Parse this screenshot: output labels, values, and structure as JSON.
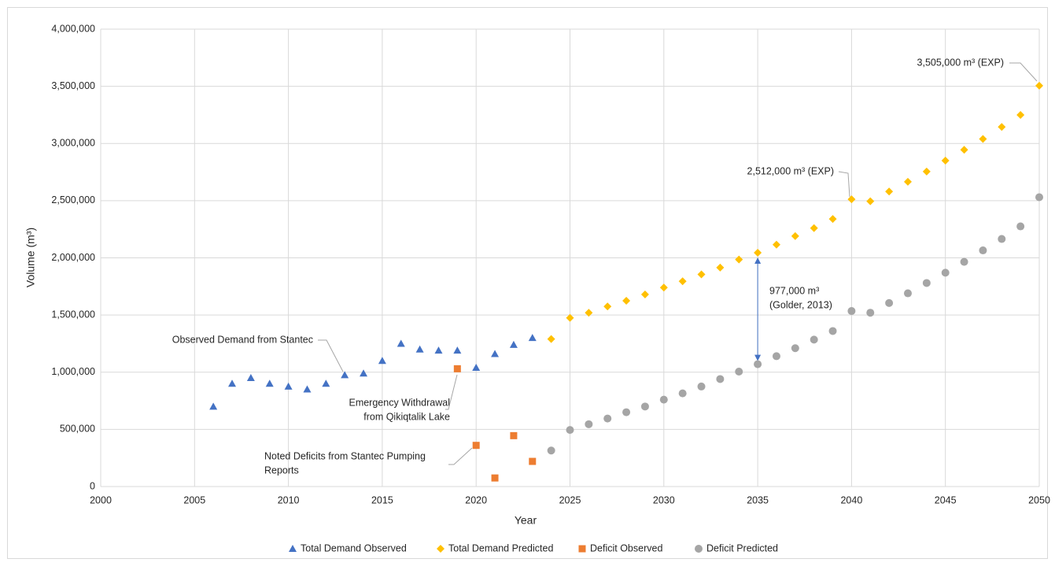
{
  "chart_data": {
    "type": "scatter",
    "xlabel": "Year",
    "ylabel": "Volume (m³)",
    "xlim": [
      2000,
      2050
    ],
    "xticks": [
      2000,
      2005,
      2010,
      2015,
      2020,
      2025,
      2030,
      2035,
      2040,
      2045,
      2050
    ],
    "ylim": [
      0,
      4000000
    ],
    "yticks": [
      0,
      {
        "value": 500000,
        "label": "500,000"
      },
      {
        "value": 1000000,
        "label": "1,000,000"
      },
      {
        "value": 1500000,
        "label": "1,500,000"
      },
      {
        "value": 2000000,
        "label": "2,000,000"
      },
      {
        "value": 2500000,
        "label": "2,500,000"
      },
      {
        "value": 3000000,
        "label": "3,000,000"
      },
      {
        "value": 3500000,
        "label": "3,500,000"
      },
      {
        "value": 4000000,
        "label": "4,000,000"
      }
    ],
    "grid": true,
    "legend": "bottom",
    "series": [
      {
        "name": "Total Demand Observed",
        "color": "#4472c4",
        "marker": "triangle",
        "x": [
          2006,
          2007,
          2008,
          2009,
          2010,
          2011,
          2012,
          2013,
          2014,
          2015,
          2016,
          2017,
          2018,
          2019,
          2020,
          2021,
          2022,
          2023
        ],
        "values": [
          700000,
          900000,
          950000,
          900000,
          875000,
          850000,
          900000,
          975000,
          990000,
          1100000,
          1250000,
          1200000,
          1190000,
          1190000,
          1040000,
          1160000,
          1240000,
          1300000
        ]
      },
      {
        "name": "Total Demand Predicted",
        "color": "#ffc000",
        "marker": "diamond",
        "x": [
          2024,
          2025,
          2026,
          2027,
          2028,
          2029,
          2030,
          2031,
          2032,
          2033,
          2034,
          2035,
          2036,
          2037,
          2038,
          2039,
          2040,
          2041,
          2042,
          2043,
          2044,
          2045,
          2046,
          2047,
          2048,
          2049,
          2050
        ],
        "values": [
          1290000,
          1475000,
          1520000,
          1575000,
          1625000,
          1680000,
          1740000,
          1795000,
          1855000,
          1915000,
          1985000,
          2045000,
          2115000,
          2190000,
          2260000,
          2340000,
          2512000,
          2495000,
          2580000,
          2665000,
          2755000,
          2850000,
          2945000,
          3040000,
          3145000,
          3250000,
          3505000
        ]
      },
      {
        "name": "Deficit Observed",
        "color": "#ed7d31",
        "marker": "square",
        "x": [
          2019,
          2020,
          2021,
          2022,
          2023
        ],
        "values": [
          1030000,
          360000,
          75000,
          445000,
          220000
        ]
      },
      {
        "name": "Deficit Predicted",
        "color": "#a5a5a5",
        "marker": "circle",
        "x": [
          2024,
          2025,
          2026,
          2027,
          2028,
          2029,
          2030,
          2031,
          2032,
          2033,
          2034,
          2035,
          2036,
          2037,
          2038,
          2039,
          2040,
          2041,
          2042,
          2043,
          2044,
          2045,
          2046,
          2047,
          2048,
          2049,
          2050
        ],
        "values": [
          315000,
          495000,
          545000,
          595000,
          650000,
          700000,
          760000,
          815000,
          875000,
          940000,
          1005000,
          1070000,
          1140000,
          1210000,
          1285000,
          1360000,
          1535000,
          1520000,
          1605000,
          1690000,
          1780000,
          1870000,
          1965000,
          2065000,
          2165000,
          2275000,
          2530000
        ]
      }
    ],
    "annotations": [
      {
        "lines": [
          "3,505,000 m³ (EXP)"
        ]
      },
      {
        "lines": [
          "2,512,000 m³ (EXP)"
        ]
      },
      {
        "lines": [
          "977,000 m³",
          "(Golder, 2013)"
        ]
      },
      {
        "lines": [
          "Observed Demand from Stantec"
        ]
      },
      {
        "lines": [
          "Emergency Withdrawal",
          "from Qikiqtalik Lake"
        ]
      },
      {
        "lines": [
          "Noted Deficits from Stantec Pumping",
          "Reports"
        ]
      }
    ]
  }
}
